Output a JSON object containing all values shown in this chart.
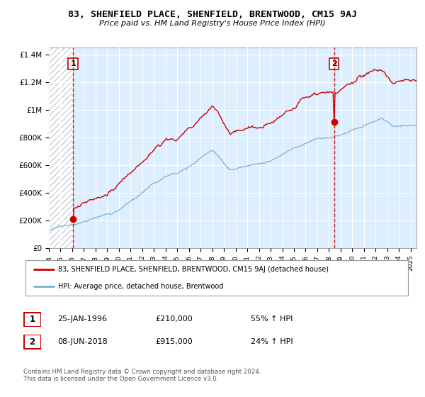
{
  "title": "83, SHENFIELD PLACE, SHENFIELD, BRENTWOOD, CM15 9AJ",
  "subtitle": "Price paid vs. HM Land Registry's House Price Index (HPI)",
  "ylabel_ticks": [
    "£0",
    "£200K",
    "£400K",
    "£600K",
    "£800K",
    "£1M",
    "£1.2M",
    "£1.4M"
  ],
  "ytick_values": [
    0,
    200000,
    400000,
    600000,
    800000,
    1000000,
    1200000,
    1400000
  ],
  "ylim": [
    0,
    1450000
  ],
  "xlim_start": 1994.0,
  "xlim_end": 2025.5,
  "sale1_date": 1996.07,
  "sale1_price": 210000,
  "sale1_label": "1",
  "sale2_date": 2018.44,
  "sale2_price": 915000,
  "sale2_label": "2",
  "property_color": "#cc0000",
  "hpi_color": "#7ab0d4",
  "hpi_bg_color": "#ddeeff",
  "hatch_color": "#c8d0d8",
  "annotation1_date": "25-JAN-1996",
  "annotation1_price": "£210,000",
  "annotation1_hpi": "55% ↑ HPI",
  "annotation2_date": "08-JUN-2018",
  "annotation2_price": "£915,000",
  "annotation2_hpi": "24% ↑ HPI",
  "legend_property": "83, SHENFIELD PLACE, SHENFIELD, BRENTWOOD, CM15 9AJ (detached house)",
  "legend_hpi": "HPI: Average price, detached house, Brentwood",
  "footer": "Contains HM Land Registry data © Crown copyright and database right 2024.\nThis data is licensed under the Open Government Licence v3.0.",
  "xtick_years": [
    1994,
    1995,
    1996,
    1997,
    1998,
    1999,
    2000,
    2001,
    2002,
    2003,
    2004,
    2005,
    2006,
    2007,
    2008,
    2009,
    2010,
    2011,
    2012,
    2013,
    2014,
    2015,
    2016,
    2017,
    2018,
    2019,
    2020,
    2021,
    2022,
    2023,
    2024,
    2025
  ]
}
